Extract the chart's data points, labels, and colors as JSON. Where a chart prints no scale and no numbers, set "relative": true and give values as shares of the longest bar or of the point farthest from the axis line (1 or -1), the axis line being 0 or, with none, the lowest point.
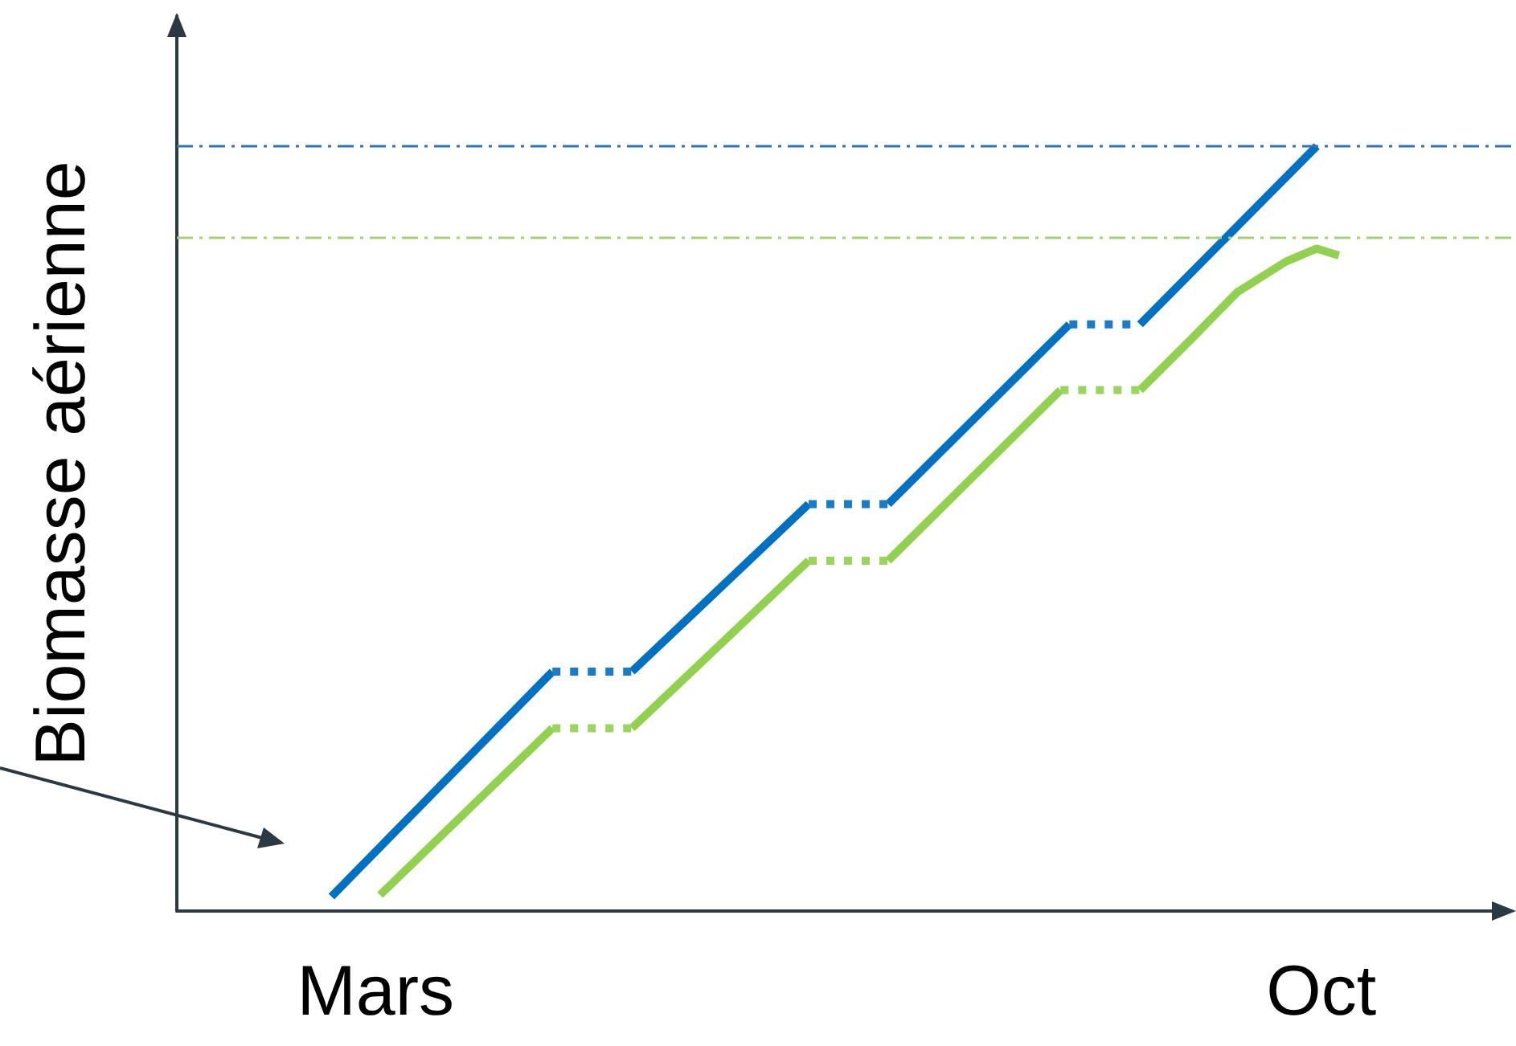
{
  "chart_data": {
    "type": "line",
    "relative": true,
    "ylabel": "Biomasse aérienne",
    "marker": "none",
    "grid": false,
    "xlim": [
      "--01-15",
      "--11-13"
    ],
    "xticks": [
      {
        "value": "--03-01",
        "label": "Mars"
      },
      {
        "value": "--10-01",
        "label": "Oct"
      }
    ],
    "series": [
      {
        "color": "#0070c0",
        "line_style": "solid",
        "x": [
          "--02-19",
          "--04-10",
          "--04-19",
          "--04-28",
          "--06-07",
          "--06-16",
          "--06-25",
          "--08-05",
          "--08-13",
          "--08-21",
          "--09-30"
        ],
        "values": [
          0.019,
          0.313,
          null,
          0.313,
          0.532,
          null,
          0.532,
          0.767,
          null,
          0.767,
          1
        ]
      },
      {
        "color": "#1a7cc6",
        "line_style": "dotted",
        "x": [
          "--04-10",
          "--04-28",
          "--05-16",
          "--06-07",
          "--06-25",
          "--07-16",
          "--08-05",
          "--08-21"
        ],
        "values": [
          0.313,
          0.313,
          null,
          0.532,
          0.532,
          null,
          0.767,
          0.767
        ]
      },
      {
        "color": "#92d050",
        "line_style": "solid",
        "x": [
          "--03-02",
          "--04-10",
          "--04-19",
          "--04-28",
          "--06-07",
          "--06-16",
          "--06-25",
          "--08-03",
          "--08-13",
          "--08-21",
          "--09-02",
          "--09-12",
          "--09-23",
          "--09-30",
          "--10-05"
        ],
        "values": [
          0.021,
          0.239,
          null,
          0.239,
          0.458,
          null,
          0.458,
          0.681,
          null,
          0.681,
          0.75,
          0.809,
          0.849,
          0.866,
          0.857
        ]
      },
      {
        "color": "#9ad55e",
        "line_style": "dotted",
        "x": [
          "--04-10",
          "--04-28",
          "--05-16",
          "--06-07",
          "--06-25",
          "--07-16",
          "--08-03",
          "--08-21"
        ],
        "values": [
          0.239,
          0.239,
          null,
          0.458,
          0.458,
          null,
          0.681,
          0.681
        ]
      }
    ],
    "ref_lines": [
      {
        "axis": "y",
        "value": 1,
        "color": "#2e75b6",
        "line_style": "dashed"
      },
      {
        "axis": "y",
        "value": 0.88,
        "color": "#a3cf75",
        "line_style": "dashed"
      }
    ]
  }
}
